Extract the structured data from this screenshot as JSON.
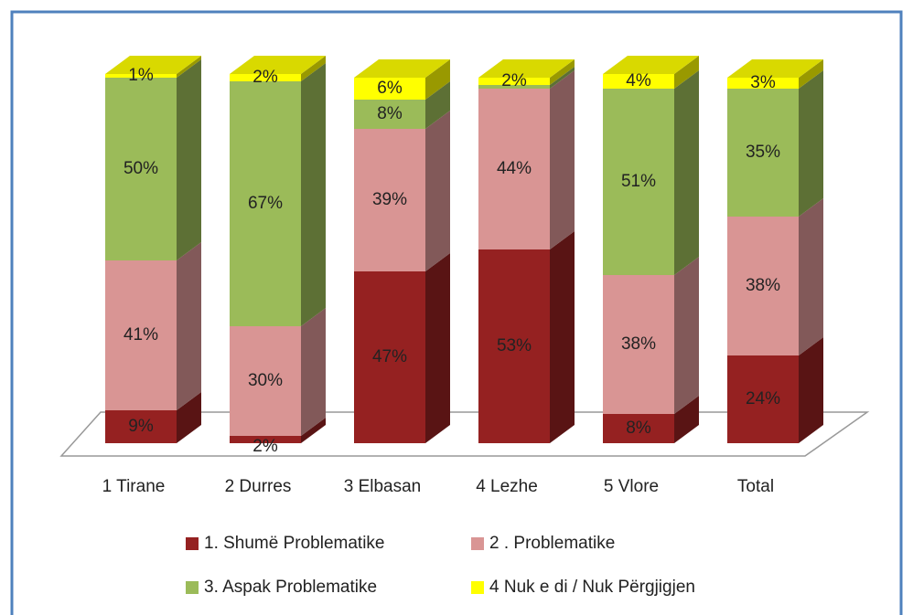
{
  "chart_data": {
    "type": "bar",
    "stacked": true,
    "categories": [
      "1 Tirane",
      "2 Durres",
      "3 Elbasan",
      "4 Lezhe",
      "5 Vlore",
      "Total"
    ],
    "ylim": [
      0,
      100
    ],
    "series": [
      {
        "name": "1. Shumë Problematike",
        "color": "#952121",
        "values": [
          9,
          2,
          47,
          53,
          8,
          24
        ],
        "value_labels": [
          "9%",
          "2%",
          "47%",
          "53%",
          "8%",
          "24%"
        ]
      },
      {
        "name": "2 . Problematike",
        "color": "#d99594",
        "values": [
          41,
          30,
          39,
          44,
          38,
          38
        ],
        "value_labels": [
          "41%",
          "30%",
          "39%",
          "44%",
          "38%",
          "38%"
        ]
      },
      {
        "name": "3. Aspak Problematike",
        "color": "#9bbb59",
        "values": [
          50,
          67,
          8,
          1,
          51,
          35
        ],
        "value_labels": [
          "50%",
          "67%",
          "8%",
          null,
          "51%",
          "35%"
        ]
      },
      {
        "name": "4 Nuk e di / Nuk Përgjigjen",
        "color": "#ffff00",
        "values": [
          1,
          2,
          6,
          2,
          4,
          3
        ],
        "value_labels": [
          "1%",
          "2%",
          "6%",
          "2%",
          "4%",
          "3%"
        ]
      }
    ],
    "legend": "bottom"
  }
}
